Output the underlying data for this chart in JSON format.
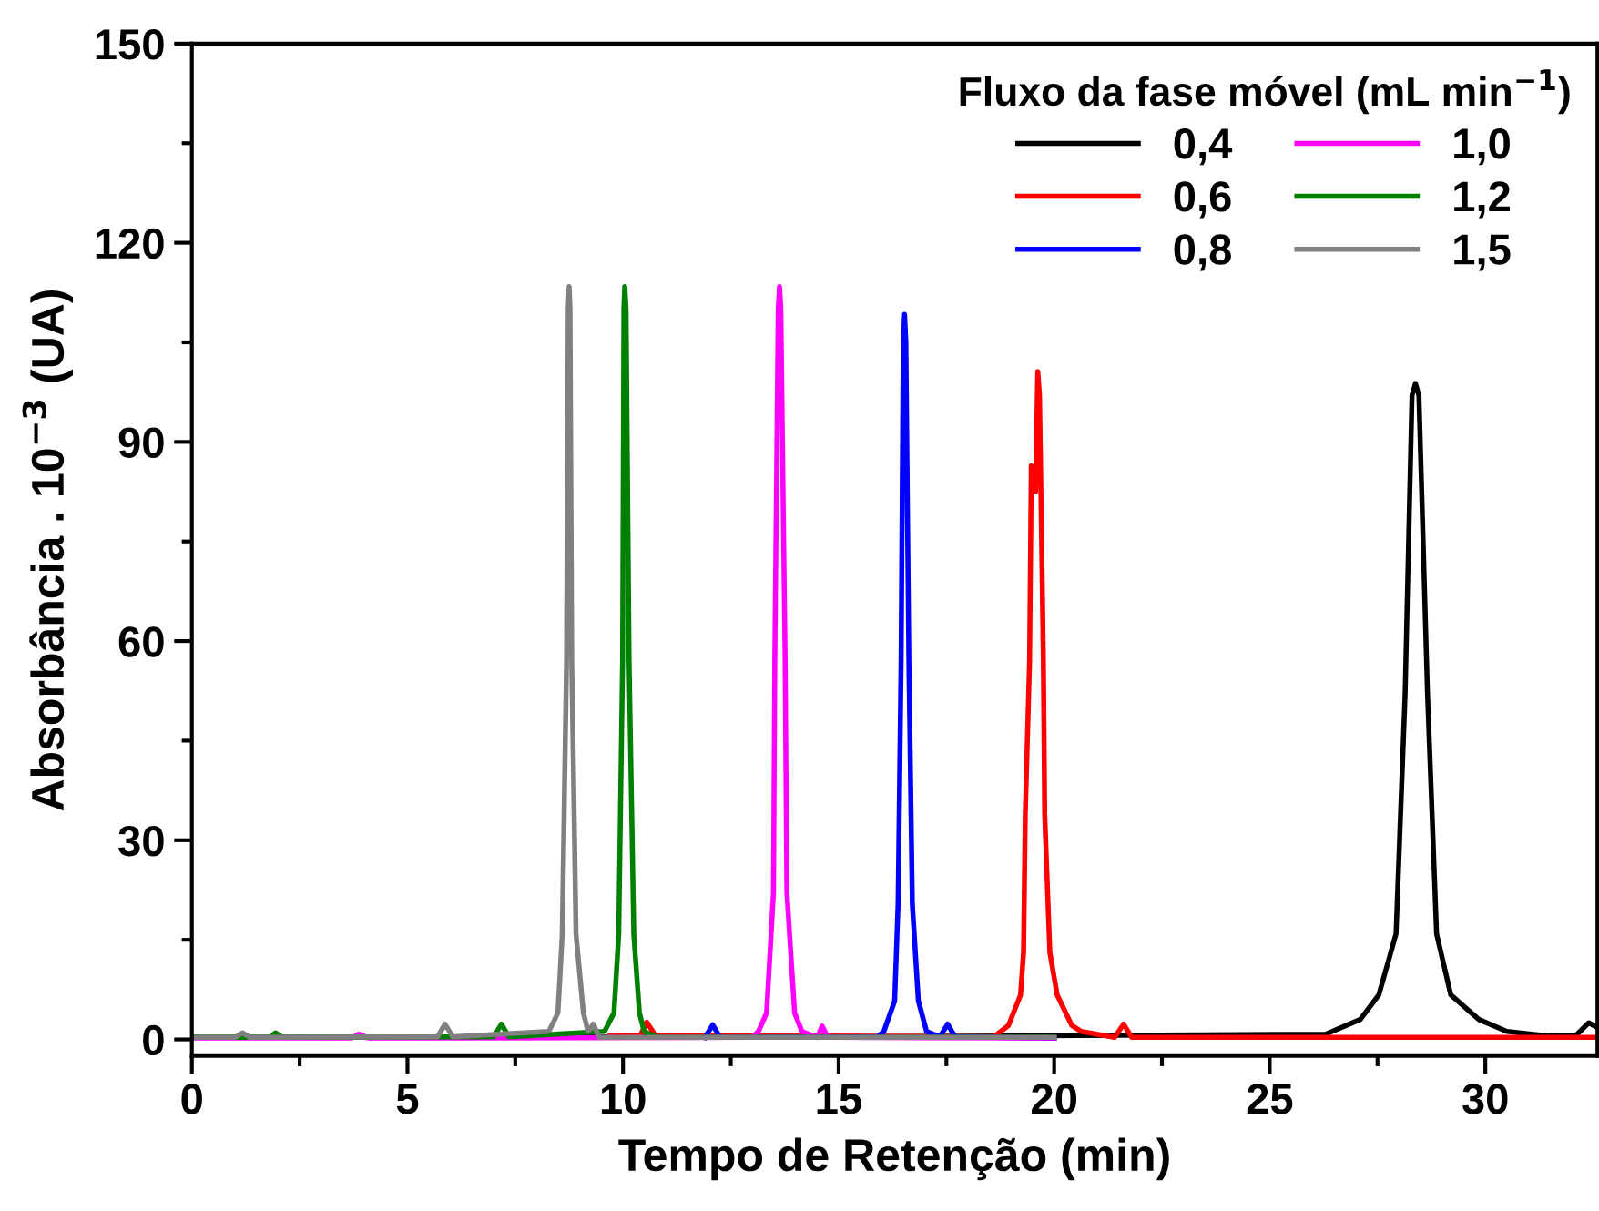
{
  "chart_data": {
    "type": "line",
    "xlabel": "Tempo de Retenção (min)",
    "ylabel": "Absorbância . 10$^{−3}$ (UA)",
    "legend_title": "Fluxo da fase móvel (mL min$^{−1}$)",
    "legend": "top right",
    "grid": false,
    "marker": "none",
    "line_style": "solid",
    "xlim": [
      0,
      32.6
    ],
    "xticks": [
      0,
      5,
      10,
      15,
      20,
      25,
      30
    ],
    "ylim": [
      -2.5,
      150
    ],
    "yticks": [
      0,
      30,
      60,
      90,
      120,
      150
    ],
    "series": [
      {
        "name": "0,4",
        "color": "#000000",
        "x": [
          0,
          16,
          26.3,
          27.1,
          27.53,
          27.93,
          28.14,
          28.3,
          28.38,
          28.46,
          28.66,
          28.87,
          29.2,
          29.85,
          30.5,
          31.5,
          32.1,
          32.4,
          32.6
        ],
        "values": [
          0.3,
          0.4,
          0.8,
          3.0,
          6.7,
          15.9,
          52,
          97,
          98.8,
          97,
          52,
          15.9,
          6.7,
          3.0,
          1.2,
          0.5,
          0.6,
          2.5,
          1.8
        ]
      },
      {
        "name": "0,6",
        "color": "#ff0000",
        "x": [
          9.7,
          10.4,
          10.55,
          10.75,
          18.6,
          18.94,
          19.22,
          19.29,
          19.33,
          19.43,
          19.47,
          19.52,
          19.57,
          19.62,
          19.66,
          19.75,
          19.78,
          19.9,
          20.07,
          20.41,
          20.63,
          21.4,
          21.61,
          21.8,
          32.6
        ],
        "values": [
          0.5,
          0.6,
          2.6,
          0.6,
          0.4,
          2.1,
          6.7,
          13.1,
          34,
          57,
          86.4,
          84,
          82.5,
          100.6,
          97,
          57,
          34,
          13.1,
          6.7,
          2.1,
          1.2,
          0.3,
          2.3,
          0.3,
          0.3
        ]
      },
      {
        "name": "0,8",
        "color": "#0000ff",
        "x": [
          11.9,
          12.08,
          12.25,
          15.9,
          16.05,
          16.3,
          16.38,
          16.45,
          16.5,
          16.53,
          16.56,
          16.63,
          16.71,
          16.85,
          17.04,
          17.35,
          17.53,
          17.7,
          20
        ],
        "values": [
          0.3,
          2.2,
          0.3,
          0.4,
          1.2,
          5.8,
          20.4,
          57,
          105,
          109.2,
          105,
          57,
          20.4,
          5.8,
          1.2,
          0.4,
          2.3,
          0.4,
          0.2
        ]
      },
      {
        "name": "1,0",
        "color": "#ff00ff",
        "x": [
          0,
          3.7,
          3.87,
          4.1,
          13.0,
          13.14,
          13.33,
          13.49,
          13.52,
          13.6,
          13.63,
          13.66,
          13.76,
          13.8,
          13.98,
          14.15,
          14.5,
          14.62,
          14.75,
          20
        ],
        "values": [
          0.2,
          0.2,
          0.8,
          0.2,
          0.3,
          1.2,
          4.0,
          22.2,
          57,
          110,
          113.4,
          110,
          57,
          22.2,
          4.0,
          1.2,
          0.3,
          2.0,
          0.3,
          0.2
        ]
      },
      {
        "name": "1,2",
        "color": "#008000",
        "x": [
          0,
          1.8,
          1.94,
          2.1,
          7.0,
          7.18,
          7.35,
          9.57,
          9.79,
          9.9,
          9.99,
          10.02,
          10.04,
          10.07,
          10.14,
          10.25,
          10.38,
          10.49,
          10.8,
          20
        ],
        "values": [
          0.3,
          0.3,
          1.0,
          0.3,
          0.4,
          2.3,
          0.4,
          1.2,
          4.0,
          15.8,
          57,
          110,
          113.4,
          110,
          57,
          15.8,
          4.0,
          1.2,
          0.3,
          0.3
        ]
      },
      {
        "name": "1,5",
        "color": "#808080",
        "x": [
          0,
          1.0,
          1.17,
          1.35,
          5.7,
          5.87,
          6.05,
          8.28,
          8.49,
          8.59,
          8.69,
          8.73,
          8.75,
          8.77,
          8.81,
          8.91,
          9.08,
          9.19,
          9.31,
          9.45,
          20
        ],
        "values": [
          0.3,
          0.3,
          1.0,
          0.3,
          0.4,
          2.3,
          0.4,
          1.2,
          4.0,
          15.8,
          57,
          110,
          113.4,
          110,
          57,
          15.8,
          4.0,
          1.2,
          2.3,
          0.3,
          0.3
        ]
      }
    ]
  }
}
